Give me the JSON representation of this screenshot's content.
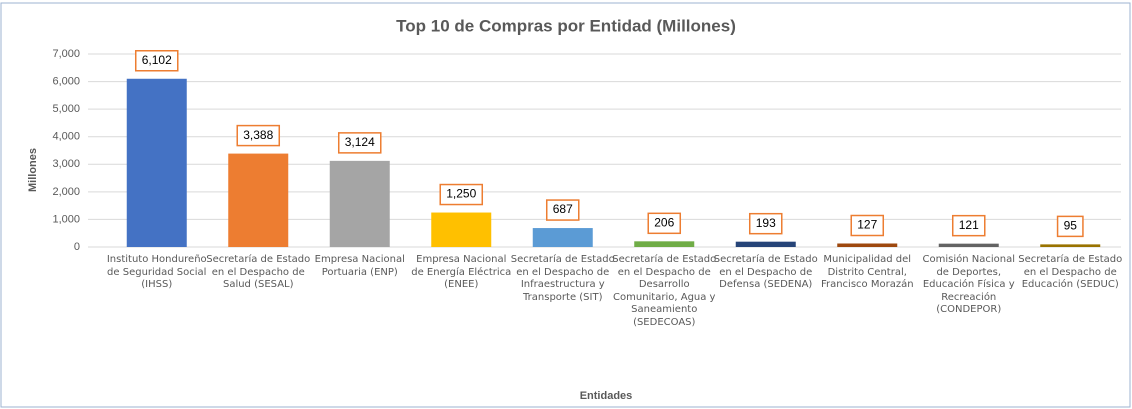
{
  "chart_data": {
    "type": "bar",
    "title": "Top 10 de Compras por Entidad (Millones)",
    "y_label": "Millones",
    "x_label": "Entidades",
    "categories": [
      "Instituto Hondureño de Seguridad Social (IHSS)",
      "Secretaría de Estado en el Despacho de Salud (SESAL)",
      "Empresa Nacional Portuaria (ENP)",
      "Empresa Nacional de Energía Eléctrica (ENEE)",
      "Secretaría de Estado en el Despacho de Infraestructura y Transporte (SIT)",
      "Secretaría de Estado en el Despacho de Desarrollo Comunitario, Agua y Saneamiento (SEDECOAS)",
      "Secretaría de Estado en el Despacho de Defensa (SEDENA)",
      "Municipalidad del Distrito Central, Francisco Morazán",
      "Comisión Nacional de Deportes, Educación Física y Recreación (CONDEPOR)",
      "Secretaría de Estado en el Despacho de Educación (SEDUC)"
    ],
    "values": [
      6102,
      3388,
      3124,
      1250,
      687,
      206,
      193,
      127,
      121,
      95
    ],
    "value_labels": [
      "6,102",
      "3,388",
      "3,124",
      "1,250",
      "687",
      "206",
      "193",
      "127",
      "121",
      "95"
    ],
    "colors": [
      "#4472c4",
      "#ed7d31",
      "#a5a5a5",
      "#ffc000",
      "#5b9bd5",
      "#70ad47",
      "#264478",
      "#9e480e",
      "#636363",
      "#997300"
    ],
    "ylim": [
      0,
      7000
    ],
    "yticks": [
      0,
      {
        "value": 1000,
        "label": "1,000"
      },
      {
        "value": 2000,
        "label": "2,000"
      },
      {
        "value": 3000,
        "label": "3,000"
      },
      {
        "value": 4000,
        "label": "4,000"
      },
      {
        "value": 5000,
        "label": "5,000"
      },
      {
        "value": 6000,
        "label": "6,000"
      },
      {
        "value": 7000,
        "label": "7,000"
      }
    ],
    "grid": true
  }
}
